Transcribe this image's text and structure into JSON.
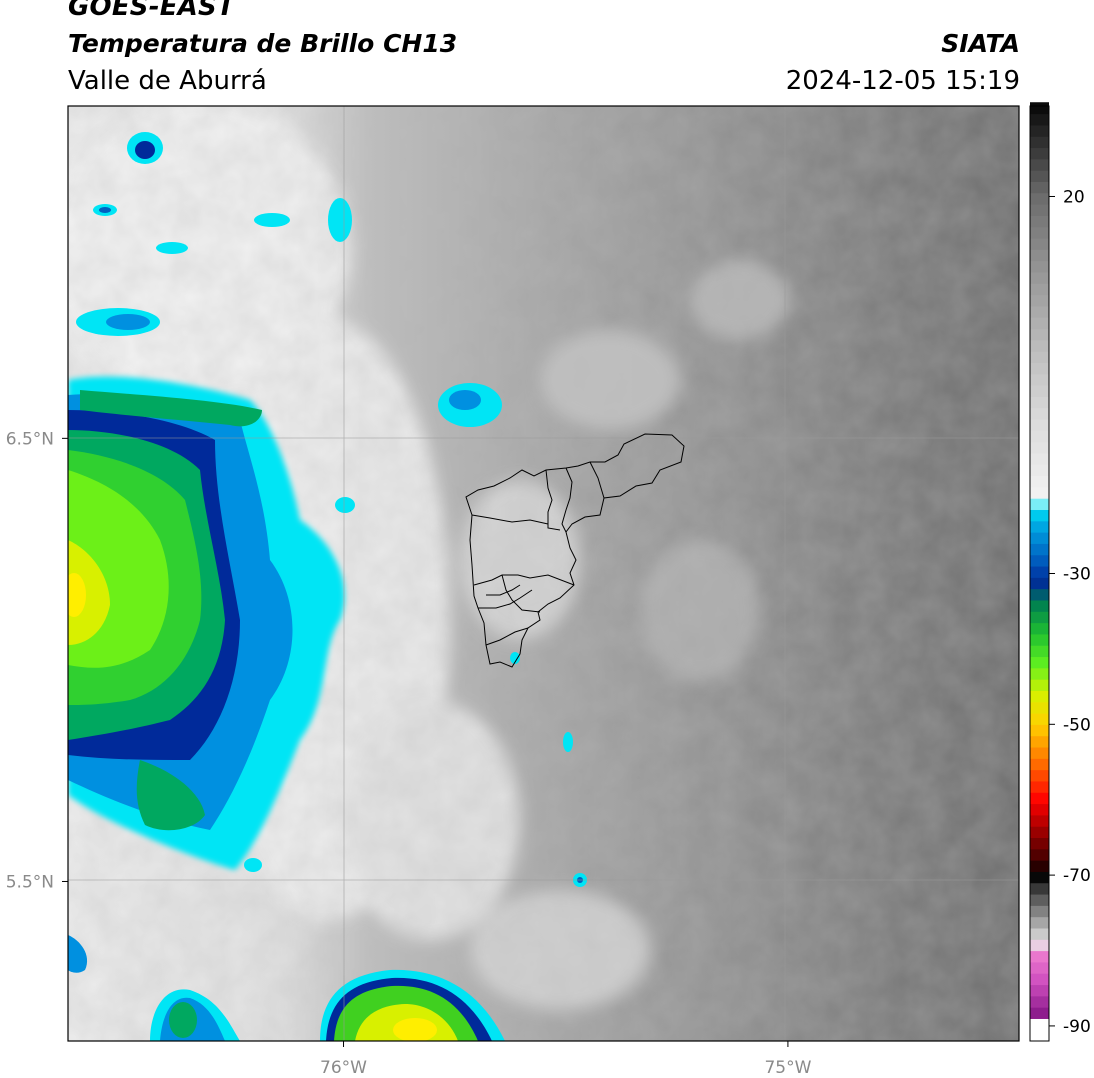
{
  "header": {
    "satellite": "GOES-EAST",
    "product": "Temperatura de Brillo CH13",
    "region": "Valle de Aburrá",
    "organization": "SIATA",
    "datetime": "2024-12-05 15:19"
  },
  "map": {
    "lat_ticks": [
      {
        "value": 6.5,
        "label": "6.5°N"
      },
      {
        "value": 5.5,
        "label": "5.5°N"
      }
    ],
    "lon_ticks": [
      {
        "value": -76.0,
        "label": "76°W"
      },
      {
        "value": -75.0,
        "label": "75°W"
      }
    ],
    "extent": {
      "lon_min": -76.62,
      "lon_max": -74.48,
      "lat_min": 5.14,
      "lat_max": 7.25
    },
    "grid_color": "#9a9a9a",
    "boundary_color": "#000000"
  },
  "colorbar": {
    "unit": "",
    "ticks": [
      {
        "value": 20,
        "label": "20"
      },
      {
        "value": -30,
        "label": "-30"
      },
      {
        "value": -50,
        "label": "-50"
      },
      {
        "value": -70,
        "label": "-70"
      },
      {
        "value": -90,
        "label": "-90"
      }
    ],
    "range": [
      -92,
      32
    ]
  }
}
